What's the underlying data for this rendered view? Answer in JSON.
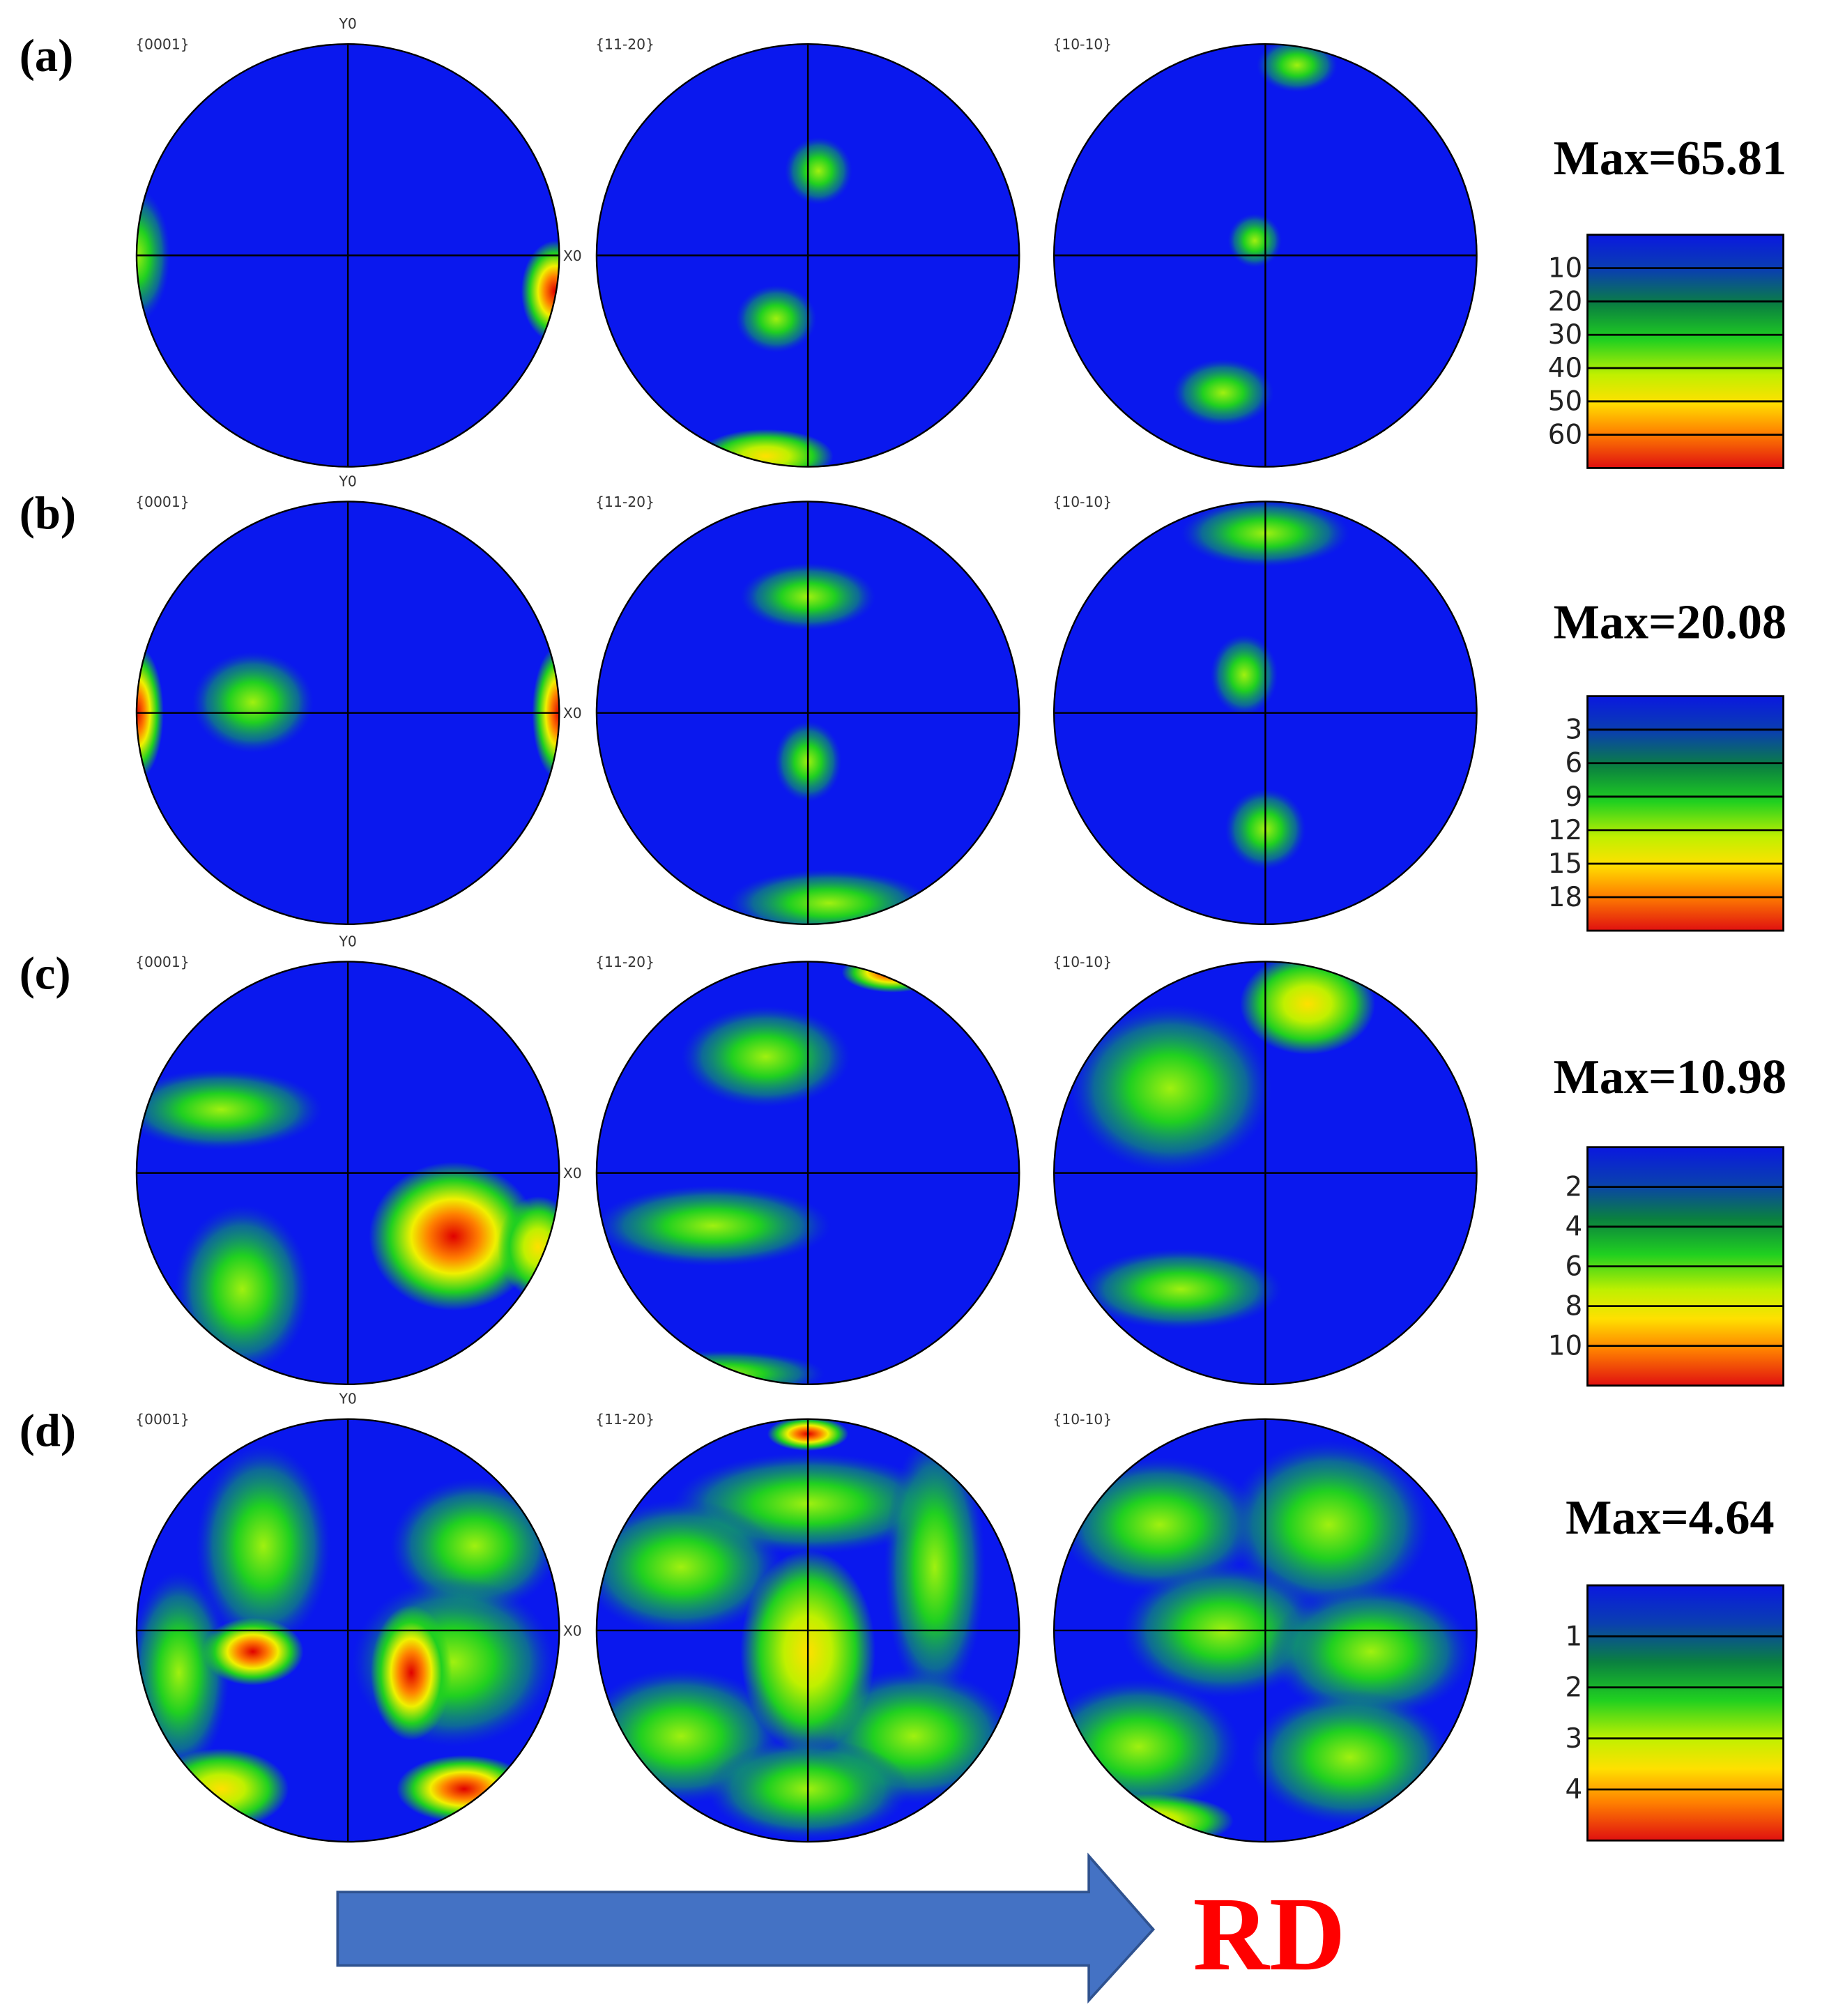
{
  "rows": [
    {
      "label": "(a)",
      "max": "Max=65.81",
      "ticks": [
        10,
        20,
        30,
        40,
        50,
        60
      ]
    },
    {
      "label": "(b)",
      "max": "Max=20.08",
      "ticks": [
        3,
        6,
        9,
        12,
        15,
        18
      ]
    },
    {
      "label": "(c)",
      "max": "Max=10.98",
      "ticks": [
        2,
        4,
        6,
        8,
        10
      ]
    },
    {
      "label": "(d)",
      "max": "Max=4.64",
      "ticks": [
        1,
        2,
        3,
        4
      ]
    }
  ],
  "figure_titles": [
    "{0001}",
    "{11-20}",
    "{10-10}"
  ],
  "axis_labels": {
    "y": "Y0",
    "x": "X0"
  },
  "arrow_label": "RD"
}
